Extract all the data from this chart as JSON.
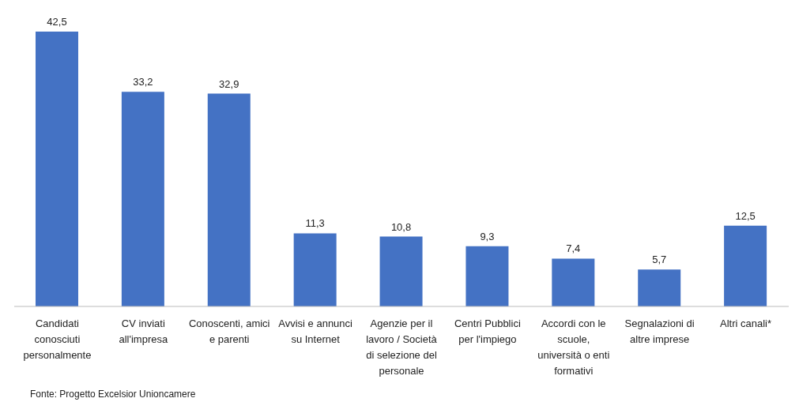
{
  "chart_data": {
    "type": "bar",
    "categories": [
      "Candidati conosciuti personalmente",
      "CV inviati all'impresa",
      "Conoscenti, amici e parenti",
      "Avvisi e annunci su Internet",
      "Agenzie per il lavoro / Società di selezione del personale",
      "Centri Pubblici per l'impiego",
      "Accordi con le scuole, università o enti formativi",
      "Segnalazioni di altre imprese",
      "Altri canali*"
    ],
    "values": [
      42.5,
      33.2,
      32.9,
      11.3,
      10.8,
      9.3,
      7.4,
      5.7,
      12.5
    ],
    "value_labels": [
      "42,5",
      "33,2",
      "32,9",
      "11,3",
      "10,8",
      "9,3",
      "7,4",
      "5,7",
      "12,5"
    ],
    "color": "#4472c4",
    "annotations": [
      "Fonte: Progetto Excelsior Unioncamere"
    ]
  }
}
